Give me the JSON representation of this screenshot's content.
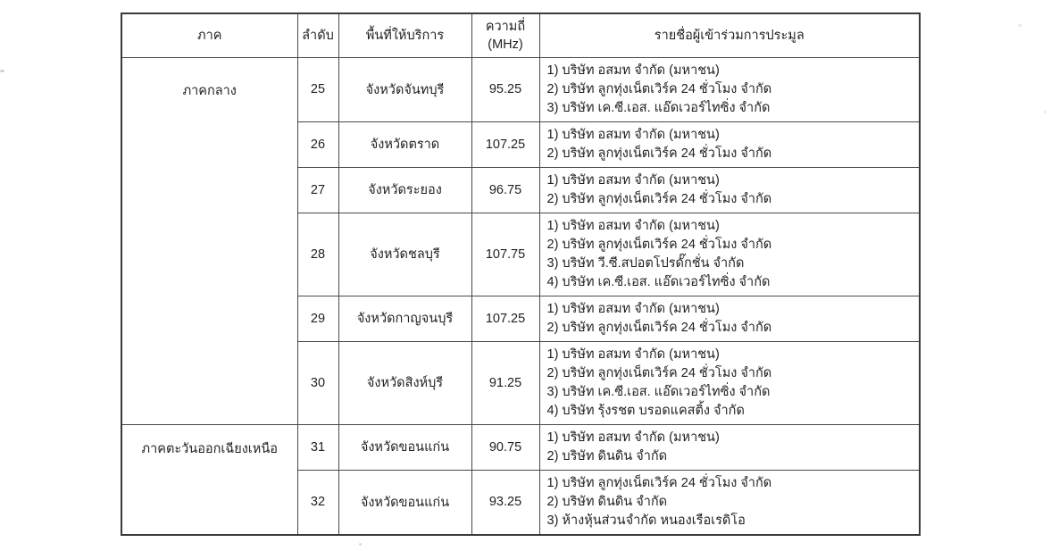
{
  "table": {
    "headers": {
      "region": "ภาค",
      "order": "ลำดับ",
      "service_area": "พื้นที่ให้บริการ",
      "frequency": "ความถี่",
      "frequency_unit": "(MHz)",
      "participants": "รายชื่อผู้เข้าร่วมการประมูล"
    },
    "regions": [
      {
        "name": "ภาคกลาง",
        "rows": [
          {
            "order": "25",
            "area": "จังหวัดจันทบุรี",
            "frequency": "95.25",
            "participants": [
              "1) บริษัท อสมท จำกัด (มหาชน)",
              "2) บริษัท ลูกทุ่งเน็ตเวิร์ค 24 ชั่วโมง จำกัด",
              "3) บริษัท เค.ซี.เอส. แอ๊ดเวอร์ไทซิ่ง จำกัด"
            ]
          },
          {
            "order": "26",
            "area": "จังหวัดตราด",
            "frequency": "107.25",
            "participants": [
              "1) บริษัท อสมท จำกัด (มหาชน)",
              "2) บริษัท ลูกทุ่งเน็ตเวิร์ค 24 ชั่วโมง จำกัด"
            ]
          },
          {
            "order": "27",
            "area": "จังหวัดระยอง",
            "frequency": "96.75",
            "participants": [
              "1) บริษัท อสมท จำกัด (มหาชน)",
              "2) บริษัท ลูกทุ่งเน็ตเวิร์ค 24 ชั่วโมง จำกัด"
            ]
          },
          {
            "order": "28",
            "area": "จังหวัดชลบุรี",
            "frequency": "107.75",
            "participants": [
              "1) บริษัท อสมท จำกัด (มหาชน)",
              "2) บริษัท ลูกทุ่งเน็ตเวิร์ค 24 ชั่วโมง จำกัด",
              "3) บริษัท วี.ซี.สปอตโปรดั๊กชั่น จำกัด",
              "4) บริษัท เค.ซี.เอส. แอ๊ดเวอร์ไทซิ่ง จำกัด"
            ]
          },
          {
            "order": "29",
            "area": "จังหวัดกาญจนบุรี",
            "frequency": "107.25",
            "participants": [
              "1) บริษัท อสมท จำกัด (มหาชน)",
              "2) บริษัท ลูกทุ่งเน็ตเวิร์ค 24 ชั่วโมง จำกัด"
            ]
          },
          {
            "order": "30",
            "area": "จังหวัดสิงห์บุรี",
            "frequency": "91.25",
            "participants": [
              "1) บริษัท อสมท จำกัด (มหาชน)",
              "2) บริษัท ลูกทุ่งเน็ตเวิร์ค 24 ชั่วโมง จำกัด",
              "3) บริษัท เค.ซี.เอส. แอ๊ดเวอร์ไทซิ่ง จำกัด",
              "4) บริษัท รุ้งรชต บรอดแคสติ้ง จำกัด"
            ]
          }
        ]
      },
      {
        "name": "ภาคตะวันออกเฉียงเหนือ",
        "rows": [
          {
            "order": "31",
            "area": "จังหวัดขอนแก่น",
            "frequency": "90.75",
            "participants": [
              "1) บริษัท อสมท จำกัด (มหาชน)",
              "2) บริษัท ดินดิน จำกัด"
            ]
          },
          {
            "order": "32",
            "area": "จังหวัดขอนแก่น",
            "frequency": "93.25",
            "participants": [
              "1) บริษัท ลูกทุ่งเน็ตเวิร์ค 24 ชั่วโมง จำกัด",
              "2) บริษัท ดินดิน จำกัด",
              "3) ห้างหุ้นส่วนจำกัด หนองเรือเรดิโอ"
            ]
          }
        ]
      }
    ],
    "colors": {
      "text": "#1f1f1f",
      "border": "#484848",
      "background": "#ffffff"
    }
  }
}
